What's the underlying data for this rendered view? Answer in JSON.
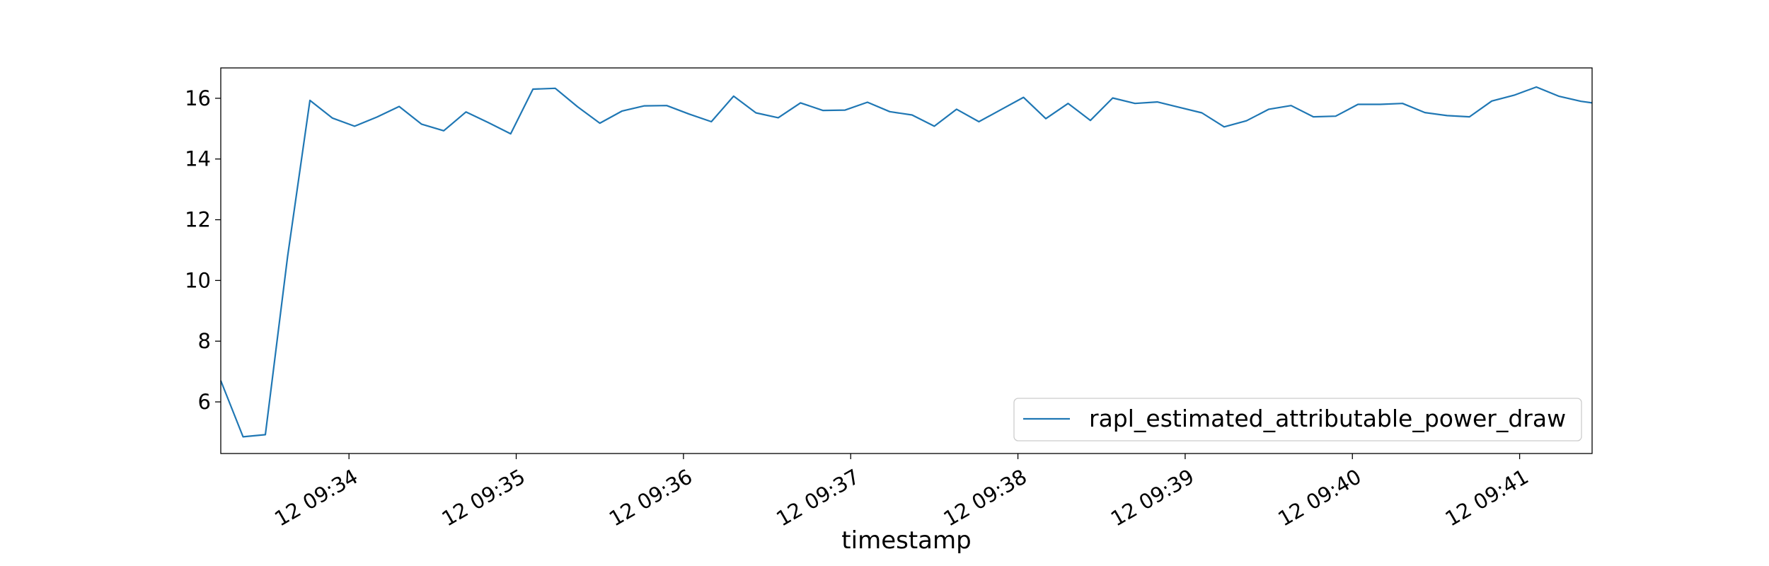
{
  "chart_data": {
    "type": "line",
    "title": "",
    "xlabel": "timestamp",
    "ylabel": "",
    "x_tick_labels": [
      "12 09:34",
      "12 09:35",
      "12 09:36",
      "12 09:37",
      "12 09:38",
      "12 09:39",
      "12 09:40",
      "12 09:41"
    ],
    "x_tick_times": [
      "09:34",
      "09:35",
      "09:36",
      "09:37",
      "09:38",
      "09:39",
      "09:40",
      "09:41"
    ],
    "y_ticks": [
      6,
      8,
      10,
      12,
      14,
      16
    ],
    "xlim": [
      "09:33:14",
      "09:41:26"
    ],
    "ylim": [
      4.3,
      17.0
    ],
    "grid": false,
    "legend_position": "lower right",
    "series": [
      {
        "name": "rapl_estimated_attributable_power_draw",
        "color": "#1f77b4",
        "x": [
          "09:33:14",
          "09:33:22",
          "09:33:30",
          "09:33:38",
          "09:33:46",
          "09:33:54",
          "09:34:02",
          "09:34:10",
          "09:34:18",
          "09:34:26",
          "09:34:34",
          "09:34:42",
          "09:34:50",
          "09:34:58",
          "09:35:06",
          "09:35:14",
          "09:35:22",
          "09:35:30",
          "09:35:38",
          "09:35:46",
          "09:35:54",
          "09:36:02",
          "09:36:10",
          "09:36:18",
          "09:36:26",
          "09:36:34",
          "09:36:42",
          "09:36:50",
          "09:36:58",
          "09:37:06",
          "09:37:14",
          "09:37:22",
          "09:37:30",
          "09:37:38",
          "09:37:46",
          "09:37:54",
          "09:38:02",
          "09:38:10",
          "09:38:18",
          "09:38:26",
          "09:38:34",
          "09:38:42",
          "09:38:50",
          "09:38:58",
          "09:39:06",
          "09:39:14",
          "09:39:22",
          "09:39:30",
          "09:39:38",
          "09:39:46",
          "09:39:54",
          "09:40:02",
          "09:40:10",
          "09:40:18",
          "09:40:26",
          "09:40:34",
          "09:40:42",
          "09:40:50",
          "09:40:58",
          "09:41:06",
          "09:41:14",
          "09:41:22",
          "09:41:26"
        ],
        "y": [
          6.7,
          4.85,
          4.92,
          10.8,
          15.93,
          15.35,
          15.08,
          15.38,
          15.73,
          15.15,
          14.93,
          15.55,
          15.2,
          14.83,
          16.3,
          16.33,
          15.72,
          15.18,
          15.58,
          15.75,
          15.76,
          15.48,
          15.23,
          16.07,
          15.52,
          15.36,
          15.85,
          15.6,
          15.61,
          15.87,
          15.56,
          15.45,
          15.08,
          15.64,
          15.23,
          15.63,
          16.03,
          15.33,
          15.83,
          15.27,
          16.01,
          15.83,
          15.88,
          15.7,
          15.52,
          15.06,
          15.26,
          15.64,
          15.76,
          15.39,
          15.41,
          15.8,
          15.8,
          15.83,
          15.53,
          15.43,
          15.39,
          15.91,
          16.1,
          16.37,
          16.07,
          15.9,
          15.85
        ]
      }
    ]
  }
}
